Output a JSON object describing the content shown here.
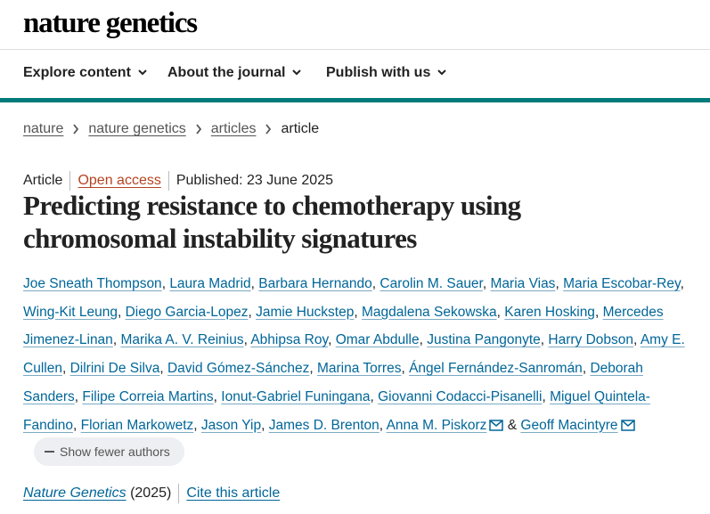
{
  "site": {
    "logo": "nature genetics"
  },
  "nav": [
    {
      "label": "Explore content"
    },
    {
      "label": "About the journal"
    },
    {
      "label": "Publish with us"
    }
  ],
  "breadcrumb": [
    "nature",
    "nature genetics",
    "articles",
    "article"
  ],
  "meta": {
    "type": "Article",
    "access": "Open access",
    "published": "Published: 23 June 2025"
  },
  "title": "Predicting resistance to chemotherapy using chromosomal instability signatures",
  "authors": [
    "Joe Sneath Thompson",
    "Laura Madrid",
    "Barbara Hernando",
    "Carolin M. Sauer",
    "Maria Vias",
    "Maria Escobar-Rey",
    "Wing-Kit Leung",
    "Diego Garcia-Lopez",
    "Jamie Huckstep",
    "Magdalena Sekowska",
    "Karen Hosking",
    "Mercedes Jimenez-Linan",
    "Marika A. V. Reinius",
    "Abhipsa Roy",
    "Omar Abdulle",
    "Justina Pangonyte",
    "Harry Dobson",
    "Amy E. Cullen",
    "Dilrini De Silva",
    "David Gómez-Sánchez",
    "Marina Torres",
    "Ángel Fernández-Sanromán",
    "Deborah Sanders",
    "Filipe Correia Martins",
    "Ionut-Gabriel Funingana",
    "Giovanni Codacci-Pisanelli",
    "Miguel Quintela-Fandino",
    "Florian Markowetz",
    "Jason Yip",
    "James D. Brenton",
    "Anna M. Piskorz",
    "Geoff Macintyre"
  ],
  "authors_ampersand": "&",
  "show_fewer": "Show fewer authors",
  "citation": {
    "journal": "Nature Genetics",
    "year": "(2025)",
    "cite": "Cite this article"
  },
  "colors": {
    "accent": "#007a7a",
    "link": "#006699",
    "open_access": "#b5431f"
  }
}
